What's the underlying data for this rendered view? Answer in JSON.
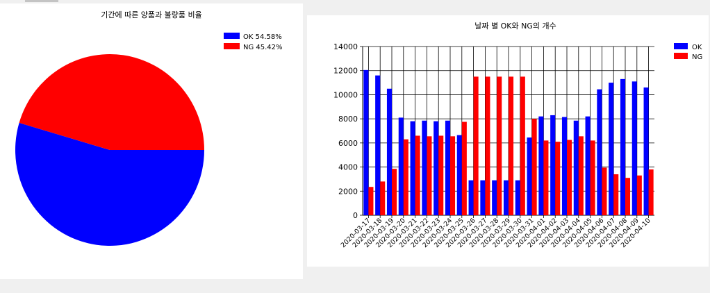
{
  "chart_data": [
    {
      "type": "pie",
      "title": "기간에 따른 양품과 불량품 비율",
      "slices": [
        {
          "name": "OK",
          "value": 54.58,
          "color": "#0000ff",
          "legend": "OK 54.58%"
        },
        {
          "name": "NG",
          "value": 45.42,
          "color": "#ff0000",
          "legend": "NG 45.42%"
        }
      ],
      "legend_position": "top-right"
    },
    {
      "type": "bar",
      "title": "날짜 별 OK와 NG의 개수",
      "categories": [
        "2020-03-17",
        "2020-03-18",
        "2020-03-19",
        "2020-03-20",
        "2020-03-21",
        "2020-03-22",
        "2020-03-23",
        "2020-03-24",
        "2020-03-25",
        "2020-03-26",
        "2020-03-27",
        "2020-03-28",
        "2020-03-29",
        "2020-03-30",
        "2020-03-31",
        "2020-04-01",
        "2020-04-02",
        "2020-04-03",
        "2020-04-04",
        "2020-04-05",
        "2020-04-06",
        "2020-04-07",
        "2020-04-08",
        "2020-04-09",
        "2020-04-10"
      ],
      "series": [
        {
          "name": "OK",
          "color": "#0000ff",
          "values": [
            12050,
            11600,
            10500,
            8100,
            7800,
            7850,
            7800,
            7850,
            6650,
            2900,
            2900,
            2900,
            2900,
            2900,
            6450,
            8200,
            8300,
            8150,
            7850,
            8200,
            10450,
            11000,
            11300,
            11100,
            10600
          ]
        },
        {
          "name": "NG",
          "color": "#ff0000",
          "values": [
            2350,
            2800,
            3850,
            6300,
            6600,
            6550,
            6600,
            6550,
            7750,
            11500,
            11500,
            11500,
            11500,
            11500,
            8000,
            6200,
            6100,
            6250,
            6550,
            6200,
            3950,
            3400,
            3100,
            3300,
            3800
          ]
        }
      ],
      "ylim": [
        0,
        14000
      ],
      "yticks": [
        0,
        2000,
        4000,
        6000,
        8000,
        10000,
        12000,
        14000
      ],
      "grid": true,
      "legend_position": "top-right"
    }
  ]
}
